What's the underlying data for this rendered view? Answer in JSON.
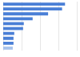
{
  "chart_data": {
    "type": "bar",
    "orientation": "horizontal",
    "categories": [
      null,
      null,
      null,
      null,
      null,
      null,
      null,
      null,
      null,
      null
    ],
    "values": [
      84,
      80,
      61,
      40,
      28,
      27,
      15,
      14,
      14,
      13
    ],
    "colors": [
      "#4a7fd6",
      "#4a7fd6",
      "#4a7fd6",
      "#4a7fd6",
      "#4a7fd6",
      "#4a7fd6",
      "#4a7fd6",
      "#4a7fd6",
      "#4a7fd6",
      "#a8c3ec"
    ],
    "xlim": [
      0,
      100
    ],
    "xticks": [
      0,
      25,
      50,
      75,
      100
    ],
    "grid": true,
    "tick_labels": false
  }
}
